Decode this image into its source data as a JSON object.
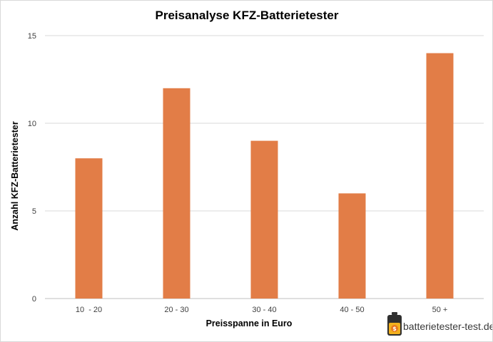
{
  "chart_data": {
    "type": "bar",
    "title": "Preisanalyse KFZ-Batterietester",
    "xlabel": "Preisspanne in Euro",
    "ylabel": "Anzahl  KFZ-Batterietester",
    "categories": [
      "10  - 20",
      "20 - 30",
      "30 - 40",
      "40 - 50",
      "50 +"
    ],
    "values": [
      8,
      12,
      9,
      6,
      14
    ],
    "ylim": [
      0,
      15
    ],
    "yticks": [
      0,
      5,
      10,
      15
    ],
    "grid": true,
    "legend": "none",
    "bar_color": "#e27d47"
  },
  "watermark": {
    "text": "batterietester-test.de",
    "icon": "battery-icon"
  }
}
